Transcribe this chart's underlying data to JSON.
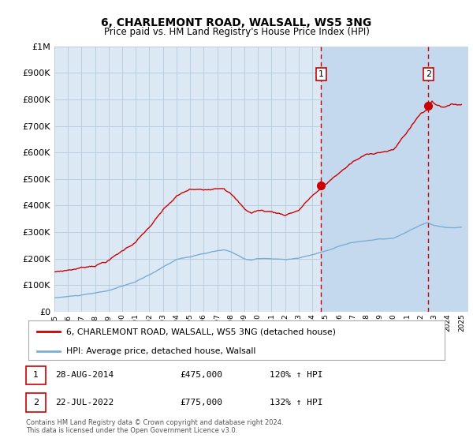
{
  "title": "6, CHARLEMONT ROAD, WALSALL, WS5 3NG",
  "subtitle": "Price paid vs. HM Land Registry's House Price Index (HPI)",
  "footer": "Contains HM Land Registry data © Crown copyright and database right 2024.\nThis data is licensed under the Open Government Licence v3.0.",
  "legend_line1": "6, CHARLEMONT ROAD, WALSALL, WS5 3NG (detached house)",
  "legend_line2": "HPI: Average price, detached house, Walsall",
  "sale1_date": "28-AUG-2014",
  "sale1_price": "£475,000",
  "sale1_hpi": "120% ↑ HPI",
  "sale1_year": 2014.65,
  "sale1_price_val": 475000,
  "sale2_date": "22-JUL-2022",
  "sale2_price": "£775,000",
  "sale2_hpi": "132% ↑ HPI",
  "sale2_year": 2022.55,
  "sale2_price_val": 775000,
  "ylim": [
    0,
    1000000
  ],
  "xlim_start": 1995,
  "xlim_end": 2025.5,
  "background_color": "#dce9f5",
  "grid_color": "#b8cfe0",
  "red_color": "#cc0000",
  "blue_color": "#7aadd4",
  "shade_color": "#c5d9ee"
}
